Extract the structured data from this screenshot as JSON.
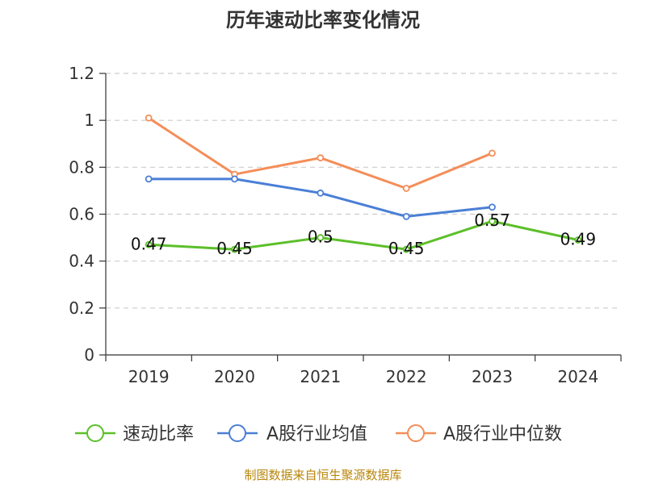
{
  "chart_data": {
    "type": "line",
    "title": "历年速动比率变化情况",
    "categories": [
      "2019",
      "2020",
      "2021",
      "2022",
      "2023",
      "2024"
    ],
    "ylim": [
      0,
      1.2
    ],
    "yticks": [
      "0",
      "0.2",
      "0.4",
      "0.6",
      "0.8",
      "1",
      "1.2"
    ],
    "ytick_values": [
      0,
      0.2,
      0.4,
      0.6,
      0.8,
      1.0,
      1.2
    ],
    "grid": true,
    "legend_position": "bottom",
    "series": [
      {
        "name": "速动比率",
        "color": "#5cbf2a",
        "values": [
          0.47,
          0.45,
          0.5,
          0.45,
          0.57,
          0.49
        ],
        "labels": [
          "0.47",
          "0.45",
          "0.5",
          "0.45",
          "0.57",
          "0.49"
        ],
        "show_labels": true
      },
      {
        "name": "A股行业均值",
        "color": "#4a7fd6",
        "values": [
          0.75,
          0.75,
          0.69,
          0.59,
          0.63,
          null
        ],
        "show_labels": false
      },
      {
        "name": "A股行业中位数",
        "color": "#f58d58",
        "values": [
          1.01,
          0.77,
          0.84,
          0.71,
          0.86,
          null
        ],
        "show_labels": false
      }
    ],
    "source": "制图数据来自恒生聚源数据库"
  }
}
